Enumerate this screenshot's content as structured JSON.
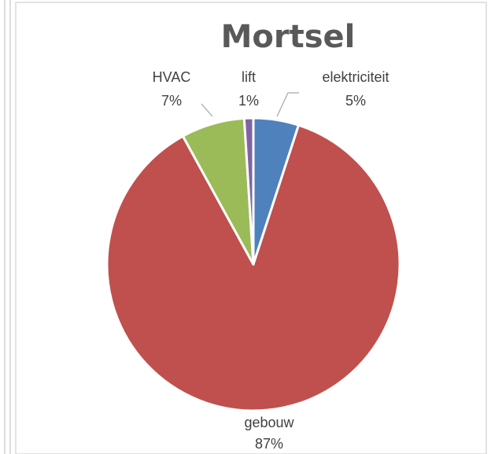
{
  "chart_data": {
    "type": "pie",
    "title": "Mortsel",
    "slices": [
      {
        "label": "elektriciteit",
        "value": 5,
        "pct_label": "5%",
        "color": "#4F81BD"
      },
      {
        "label": "gebouw",
        "value": 87,
        "pct_label": "87%",
        "color": "#C0504D"
      },
      {
        "label": "HVAC",
        "value": 7,
        "pct_label": "7%",
        "color": "#9BBB59"
      },
      {
        "label": "lift",
        "value": 1,
        "pct_label": "1%",
        "color": "#8064A2"
      }
    ]
  }
}
